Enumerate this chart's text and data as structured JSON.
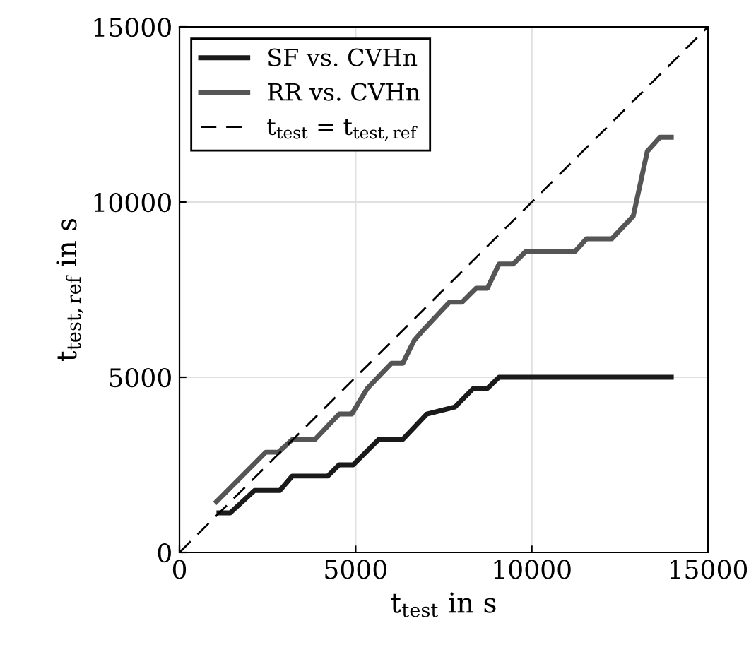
{
  "chart_data": {
    "type": "line",
    "xlabel": "t$_{test}$ in s",
    "ylabel": "t$_{test,ref}$ in s",
    "xlim": [
      0,
      15000
    ],
    "ylim": [
      0,
      15000
    ],
    "xticks": [
      0,
      5000,
      10000,
      15000
    ],
    "yticks": [
      0,
      5000,
      10000,
      15000
    ],
    "grid": true,
    "legend": "top left",
    "series": [
      {
        "name": "SF vs. CVHn",
        "color": "#1a1a1a",
        "line_style": "solid",
        "x": [
          1120,
          1440,
          2130,
          2850,
          3200,
          4210,
          4530,
          4930,
          5660,
          6340,
          7020,
          7820,
          8340,
          8740,
          9070,
          13960
        ],
        "values": [
          1130,
          1130,
          1770,
          1770,
          2180,
          2180,
          2500,
          2500,
          3230,
          3230,
          3950,
          4150,
          4680,
          4680,
          5000,
          5000
        ]
      },
      {
        "name": "RR vs. CVHn",
        "color": "#555555",
        "line_style": "solid",
        "x": [
          1050,
          2450,
          2810,
          3210,
          3850,
          4530,
          4890,
          5330,
          6020,
          6340,
          6660,
          6940,
          7660,
          8020,
          8420,
          8740,
          9070,
          9470,
          9830,
          11230,
          11550,
          12270,
          12880,
          13280,
          13640,
          13960
        ],
        "values": [
          1450,
          2860,
          2860,
          3230,
          3230,
          3950,
          3950,
          4680,
          5400,
          5400,
          6050,
          6370,
          7140,
          7140,
          7540,
          7540,
          8230,
          8230,
          8590,
          8590,
          8950,
          8950,
          9600,
          11450,
          11850,
          11850
        ]
      },
      {
        "name": "t$_{test}$ = t$_{test,ref}$",
        "color": "#000000",
        "line_style": "dashed",
        "x": [
          0,
          15000
        ],
        "values": [
          0,
          15000
        ]
      }
    ]
  }
}
